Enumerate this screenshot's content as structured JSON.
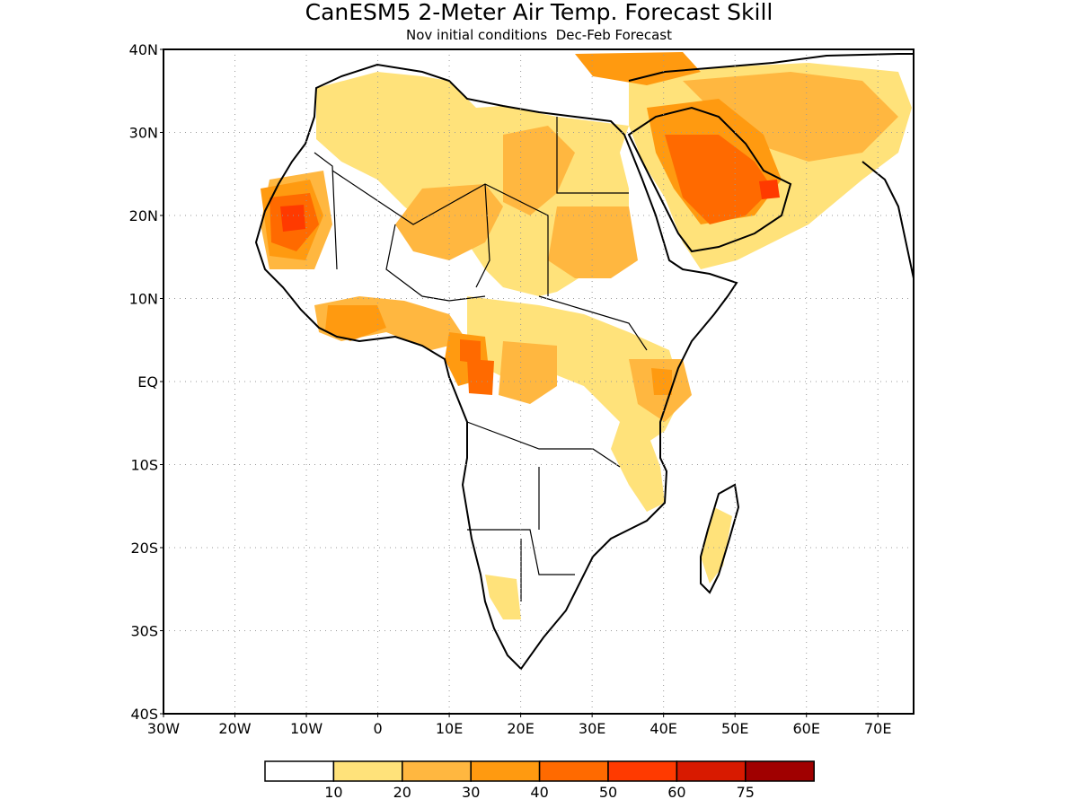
{
  "title": "CanESM5 2-Meter Air Temp. Forecast Skill",
  "subtitle": "Nov initial conditions  Dec-Feb Forecast",
  "map": {
    "lon_range": [
      -30,
      75
    ],
    "lat_range": [
      -40,
      40
    ],
    "lat_ticks": [
      "40N",
      "30N",
      "20N",
      "10N",
      "EQ",
      "10S",
      "20S",
      "30S",
      "40S"
    ],
    "lon_ticks": [
      "30W",
      "20W",
      "10W",
      "0",
      "10E",
      "20E",
      "30E",
      "40E",
      "50E",
      "60E",
      "70E"
    ],
    "gridlines": "dotted"
  },
  "legend": {
    "colors": [
      "#ffffff",
      "#ffe27a",
      "#ffb740",
      "#ff9a10",
      "#ff6a00",
      "#ff3a00",
      "#d81a00",
      "#a00000"
    ],
    "labels": [
      "10",
      "20",
      "30",
      "40",
      "50",
      "60",
      "75"
    ]
  }
}
